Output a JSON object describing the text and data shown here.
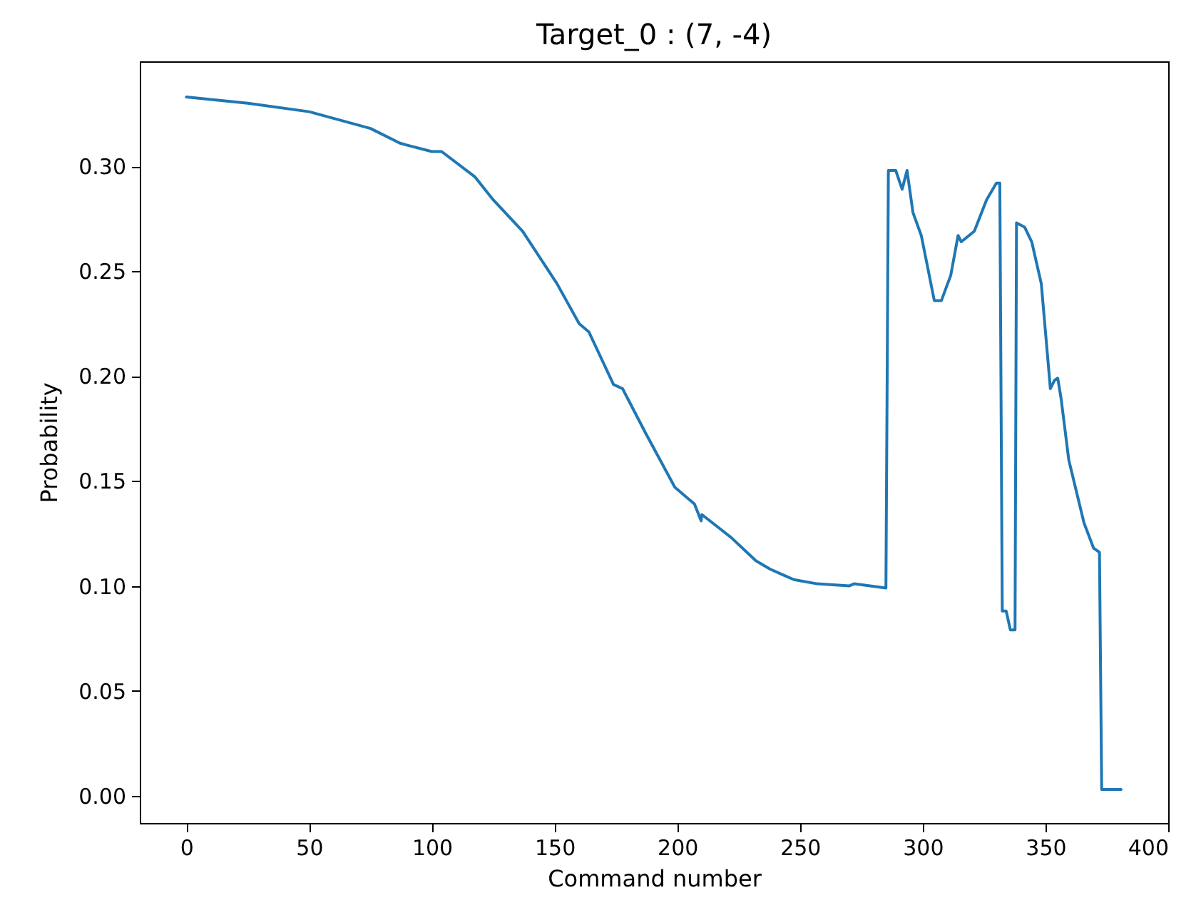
{
  "chart_data": {
    "type": "line",
    "title": "Target_0 : (7, -4)",
    "xlabel": "Command number",
    "ylabel": "Probability",
    "x": [
      0,
      25,
      50,
      75,
      87,
      90,
      100,
      104,
      117.5,
      125,
      137,
      151,
      160,
      164,
      174,
      177.7,
      187,
      199,
      207,
      209.7,
      210,
      222,
      232,
      237.8,
      243.6,
      247.5,
      257,
      270,
      272,
      285,
      286,
      289,
      291.6,
      293.6,
      296,
      299.4,
      304.7,
      307.6,
      311.4,
      314.4,
      315.7,
      321,
      326,
      330,
      331.4,
      332.4,
      334,
      335.7,
      337.6,
      338.2,
      341.5,
      344.4,
      348.3,
      352,
      353.7,
      355,
      356.4,
      359.5,
      365.7,
      369.6,
      372,
      372.9,
      380.8
    ],
    "series": [
      {
        "color": "#1f77b4",
        "values": [
          0.333,
          0.33,
          0.326,
          0.318,
          0.311,
          0.31,
          0.307,
          0.307,
          0.295,
          0.284,
          0.269,
          0.244,
          0.225,
          0.221,
          0.196,
          0.194,
          0.173,
          0.147,
          0.139,
          0.131,
          0.134,
          0.123,
          0.112,
          0.108,
          0.105,
          0.103,
          0.101,
          0.1,
          0.101,
          0.099,
          0.298,
          0.298,
          0.289,
          0.298,
          0.278,
          0.267,
          0.236,
          0.236,
          0.248,
          0.267,
          0.264,
          0.269,
          0.284,
          0.292,
          0.292,
          0.088,
          0.088,
          0.079,
          0.079,
          0.273,
          0.271,
          0.264,
          0.244,
          0.194,
          0.198,
          0.199,
          0.189,
          0.16,
          0.13,
          0.118,
          0.116,
          0.003,
          0.003
        ]
      }
    ],
    "xlim": [
      -19,
      400
    ],
    "ylim": [
      -0.013,
      0.35
    ],
    "xticks": [
      0,
      50,
      100,
      150,
      200,
      250,
      300,
      350,
      400
    ],
    "yticks": [
      {
        "value": 0,
        "label": "0.00"
      },
      {
        "value": 0.05,
        "label": "0.05"
      },
      {
        "value": 0.1,
        "label": "0.10"
      },
      {
        "value": 0.15,
        "label": "0.15"
      },
      {
        "value": 0.2,
        "label": "0.20"
      },
      {
        "value": 0.25,
        "label": "0.25"
      },
      {
        "value": 0.3,
        "label": "0.30"
      }
    ],
    "grid": false
  }
}
